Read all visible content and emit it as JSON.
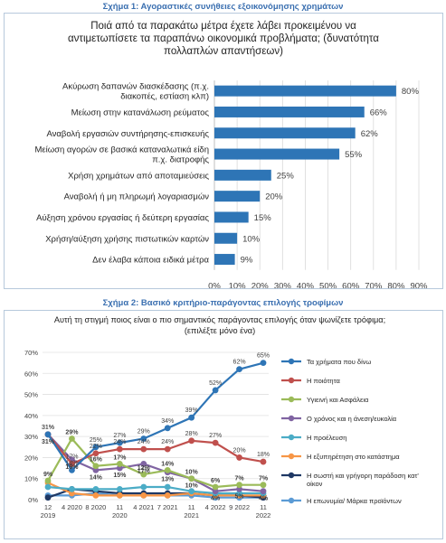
{
  "figure1": {
    "caption": "Σχήμα 1: Αγοραστικές συνήθειες εξοικονόμησης χρημάτων",
    "title_lines": [
      "Ποιά από τα παρακάτω μέτρα έχετε λάβει προκειμένου να",
      "αντιμετωπίσετε τα παραπάνω οικονομικά προβλήματα; (δυνατότητα",
      "πολλαπλών απαντήσεων)"
    ]
  },
  "figure2": {
    "caption": "Σχήμα 2: Βασικό κριτήριο-παράγοντας επιλογής τροφίμων",
    "title_lines": [
      "Αυτή τη στιγμή ποιος είναι ο πιο σημαντικός παράγοντας επιλογής όταν ψωνίζετε τρόφιμα;",
      "(επιλέξτε μόνο ένα)"
    ]
  },
  "chart_data": [
    {
      "type": "bar",
      "orientation": "horizontal",
      "color": "#2e75b6",
      "categories": [
        [
          "Ακύρωση δαπανών διασκέδασης (π.χ.",
          "διακοπές, εστίαση κλπ)"
        ],
        [
          "Μείωση στην κατανάλωση ρεύματος"
        ],
        [
          "Αναβολή εργασιών συντήρησης-επισκευής"
        ],
        [
          "Μείωση αγορών σε βασικά καταναλωτικά είδη",
          "π.χ. διατροφής"
        ],
        [
          "Χρήση χρημάτων από αποταμιεύσεις"
        ],
        [
          "Αναβολή ή μη πληρωμή λογαριασμών"
        ],
        [
          "Αύξηση χρόνου εργασίας ή δεύτερη εργασίας"
        ],
        [
          "Χρήση/αύξηση χρήσης πιστωτικών καρτών"
        ],
        [
          "Δεν έλαβα κάποια ειδικά μέτρα"
        ]
      ],
      "values": [
        80,
        66,
        62,
        55,
        25,
        20,
        15,
        10,
        9
      ],
      "data_labels": [
        "80%",
        "66%",
        "62%",
        "55%",
        "25%",
        "20%",
        "15%",
        "10%",
        "9%"
      ],
      "xlim": [
        0,
        90
      ],
      "xticks": [
        "0%",
        "10%",
        "20%",
        "30%",
        "40%",
        "50%",
        "60%",
        "70%",
        "80%",
        "90%"
      ],
      "grid": true
    },
    {
      "type": "line",
      "x": [
        [
          "12",
          "2019"
        ],
        [
          "4 2020"
        ],
        [
          "8 2020"
        ],
        [
          "11",
          "2020"
        ],
        [
          "4 2021"
        ],
        [
          "7 2021"
        ],
        [
          "11",
          "2021"
        ],
        [
          "4 2022"
        ],
        [
          "9 2022"
        ],
        [
          "11",
          "2022"
        ]
      ],
      "ylim": [
        0,
        70
      ],
      "yticks": [
        "0%",
        "10%",
        "20%",
        "30%",
        "40%",
        "50%",
        "60%",
        "70%"
      ],
      "grid": true,
      "legend_position": "right",
      "series": [
        {
          "name": "Τα χρήματα που δίνω",
          "color": "#2e75b6",
          "values": [
            31,
            14,
            25,
            27,
            29,
            34,
            39,
            52,
            62,
            65
          ],
          "labels": [
            "31%",
            "14%",
            "25%",
            "27%",
            "29%",
            "34%",
            "39%",
            "52%",
            "62%",
            "65%"
          ]
        },
        {
          "name": "Η ποιότητα",
          "color": "#c0504d",
          "values": [
            31,
            17,
            22,
            24,
            24,
            24,
            28,
            27,
            20,
            18
          ],
          "labels": [
            "31%",
            "17%",
            "22%",
            "24%",
            "24%",
            "24%",
            "28%",
            "27%",
            "20%",
            "18%"
          ]
        },
        {
          "name": "Υγιεινή και Ασφάλεια",
          "color": "#9bbb59",
          "values": [
            9,
            29,
            16,
            17,
            12,
            14,
            10,
            6,
            7,
            7
          ],
          "labels": [
            "9%",
            "29%",
            "16%",
            "17%",
            "12%",
            "14%",
            "10%",
            "6%",
            "7%",
            "7%"
          ]
        },
        {
          "name": "Ο χρόνος και η άνεση/ευκολία",
          "color": "#8064a2",
          "values": [
            31,
            19,
            14,
            15,
            17,
            13,
            10,
            4,
            5,
            4
          ],
          "labels": [
            "31%",
            "19%",
            "14%",
            "15%",
            "17%",
            "13%",
            "10%",
            "4%",
            "5%",
            "4%"
          ]
        },
        {
          "name": "Η προέλευση",
          "color": "#4bacc6",
          "values": [
            6,
            5,
            5,
            5,
            6,
            6,
            4,
            3,
            3,
            3
          ],
          "labels": []
        },
        {
          "name": "Η εξυπηρέτηση στο κατάστημα",
          "color": "#f79646",
          "values": [
            8,
            3,
            2,
            2,
            2,
            2,
            3,
            2,
            2,
            2
          ],
          "labels": []
        },
        {
          "name": "Η σωστή και γρήγορη παράδοση κατ' οίκον",
          "color": "#1f3864",
          "values": [
            1,
            5,
            4,
            3,
            3,
            3,
            3,
            2,
            2,
            1
          ],
          "labels": []
        },
        {
          "name": "Η επωνυμία/ Μάρκα προϊόντων",
          "color": "#5b9bd5",
          "values": [
            2,
            2,
            3,
            2,
            2,
            2,
            2,
            1,
            1,
            1
          ],
          "labels": []
        }
      ]
    }
  ]
}
